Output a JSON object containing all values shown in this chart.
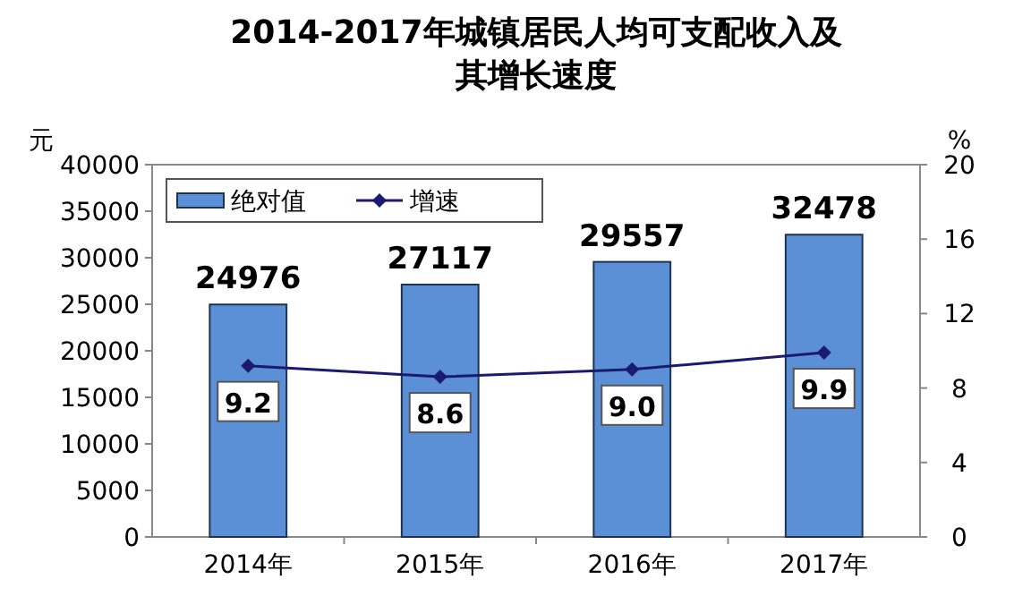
{
  "chart_data": {
    "type": "bar",
    "title": "2014-2017年城镇居民人均可支配收入及其增长速度",
    "categories": [
      "2014年",
      "2015年",
      "2016年",
      "2017年"
    ],
    "series": [
      {
        "name": "绝对值",
        "color": "#5b8fd6",
        "values": [
          24976,
          27117,
          29557,
          32478
        ]
      },
      {
        "name": "增速",
        "type": "line",
        "axis": "y2",
        "color": "#1a1a6e",
        "marker": "diamond",
        "values": [
          9.2,
          8.6,
          9.0,
          9.9
        ],
        "value_labels": [
          "9.2",
          "8.6",
          "9.0",
          "9.9"
        ]
      }
    ],
    "ylabel": "元",
    "y2label": "%",
    "ylim": [
      0,
      40000
    ],
    "yticks": [
      0,
      5000,
      10000,
      15000,
      20000,
      25000,
      30000,
      35000,
      40000
    ],
    "y2lim": [
      0,
      20
    ],
    "y2ticks": [
      0,
      4,
      8,
      12,
      16,
      20
    ],
    "data_labels": true,
    "legend": "top left",
    "grid": false
  }
}
